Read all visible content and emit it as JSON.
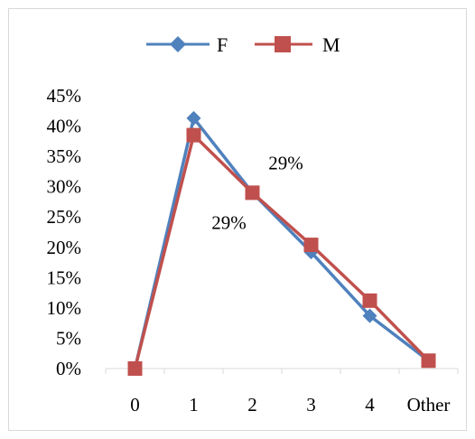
{
  "chart_data": {
    "type": "line",
    "title": "",
    "xlabel": "",
    "ylabel": "",
    "categories": [
      "0",
      "1",
      "2",
      "3",
      "4",
      "Other"
    ],
    "ylim": [
      0,
      45
    ],
    "y_ticks": [
      "0%",
      "5%",
      "10%",
      "15%",
      "20%",
      "25%",
      "30%",
      "35%",
      "40%",
      "45%"
    ],
    "y_tick_values": [
      0,
      5,
      10,
      15,
      20,
      25,
      30,
      35,
      40,
      45
    ],
    "grid": false,
    "legend_position": "top",
    "series": [
      {
        "name": "F",
        "color": "#4F81BD",
        "marker": "diamond",
        "values": [
          0,
          41.3,
          29,
          19.2,
          8.7,
          1.3
        ]
      },
      {
        "name": "M",
        "color": "#C0504D",
        "marker": "square",
        "values": [
          0,
          38.5,
          29,
          20.4,
          11.2,
          1.3
        ]
      }
    ],
    "annotations": [
      {
        "text": "29%",
        "series": "F",
        "category": "2"
      },
      {
        "text": "29%",
        "series": "M",
        "category": "2"
      }
    ]
  }
}
